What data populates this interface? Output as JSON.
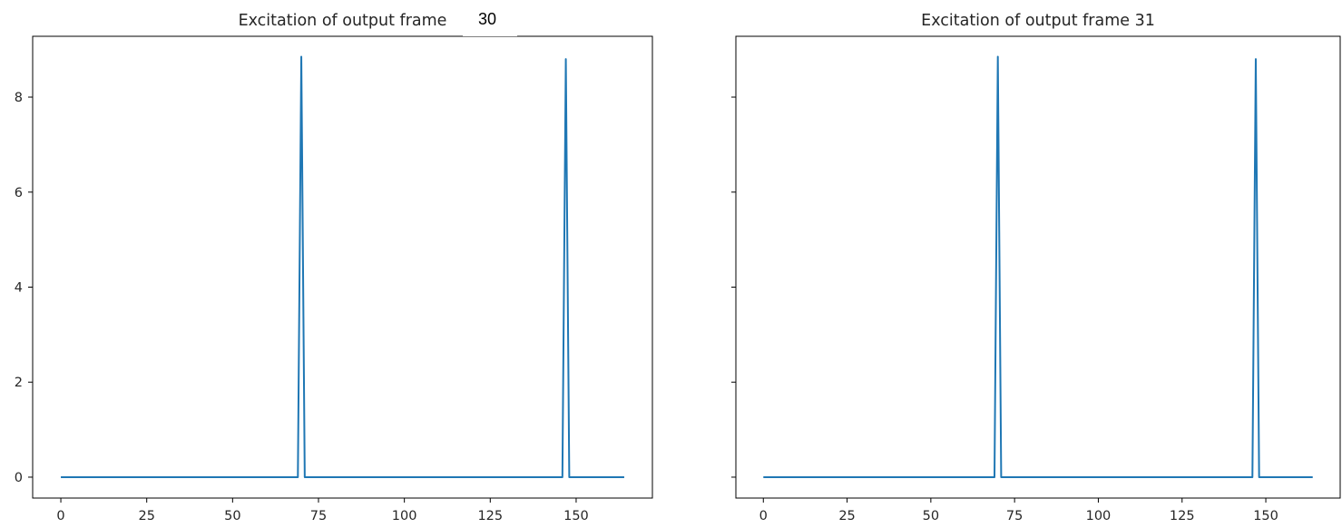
{
  "chart_data": [
    {
      "type": "line",
      "title": "Excitation of output frame",
      "xlabel": "",
      "ylabel": "",
      "xlim": [
        -8.2,
        172.2
      ],
      "ylim": [
        -0.44,
        9.28
      ],
      "xticks": [
        0,
        25,
        50,
        75,
        100,
        125,
        150
      ],
      "yticks": [
        0,
        2,
        4,
        6,
        8
      ],
      "grid": false,
      "line_color": "#1f77b4",
      "series": [
        {
          "x": [
            0,
            69,
            70,
            71,
            146,
            147,
            148,
            164
          ],
          "y": [
            0,
            0,
            8.85,
            0,
            0,
            8.8,
            0,
            0
          ]
        }
      ]
    },
    {
      "type": "line",
      "title": "Excitation of output frame 31",
      "xlabel": "",
      "ylabel": "",
      "xlim": [
        -8.2,
        172.2
      ],
      "ylim": [
        -0.44,
        9.28
      ],
      "xticks": [
        0,
        25,
        50,
        75,
        100,
        125,
        150
      ],
      "yticks": [
        0,
        2,
        4,
        6,
        8
      ],
      "show_ytick_labels": false,
      "grid": false,
      "line_color": "#1f77b4",
      "series": [
        {
          "x": [
            0,
            69,
            70,
            71,
            146,
            147,
            148,
            164
          ],
          "y": [
            0,
            0,
            8.85,
            0,
            0,
            8.8,
            0,
            0
          ]
        }
      ]
    }
  ],
  "overlay": {
    "frame_number": "30"
  }
}
